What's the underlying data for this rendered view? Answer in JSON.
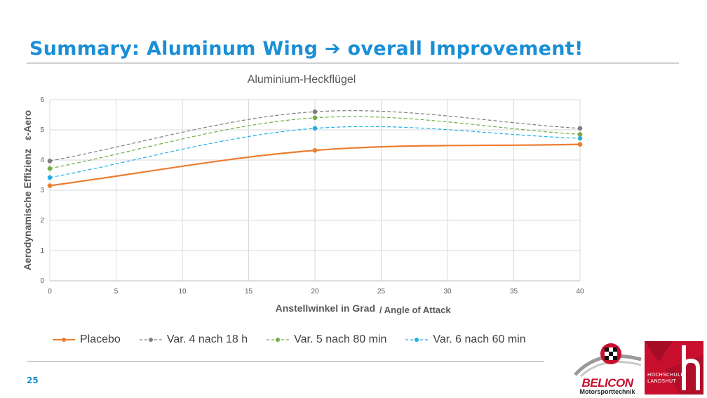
{
  "slide": {
    "title": "Summary: Aluminum Wing ➔ overall Improvement!",
    "page_number": "25"
  },
  "logos": {
    "belicon_name": "BELICON",
    "belicon_tagline": "Motorsporttechnik",
    "school_line1": "HOCHSCHULE",
    "school_line2": "LANDSHUT"
  },
  "colors": {
    "title": "#1a8fd6",
    "placebo": "#ed7d31",
    "var4": "#7f7f7f",
    "var5": "#70ad47",
    "var6": "#1fb0e6",
    "grid": "#d9d9d9",
    "brand_red": "#c8102e"
  },
  "chart_data": {
    "type": "line",
    "title": "Aluminium-Heckflügel",
    "xlabel": "Anstellwinkel in Grad",
    "xlabel_suffix": "/ Angle of Attack",
    "ylabel": "Aerodynamische Effizienz   ε-Aero",
    "xlim": [
      0,
      40
    ],
    "ylim": [
      0,
      6
    ],
    "xticks": [
      0,
      5,
      10,
      15,
      20,
      25,
      30,
      35,
      40
    ],
    "yticks": [
      0,
      1,
      2,
      3,
      4,
      5,
      6
    ],
    "grid": true,
    "legend_position": "bottom",
    "x": [
      0,
      20,
      40
    ],
    "series": [
      {
        "name": "Placebo",
        "values": [
          3.15,
          4.32,
          4.52
        ],
        "style": "solid"
      },
      {
        "name": "Var. 4 nach 18 h",
        "values": [
          3.97,
          5.6,
          5.05
        ],
        "style": "dashed"
      },
      {
        "name": "Var. 5 nach 80 min",
        "values": [
          3.72,
          5.4,
          4.85
        ],
        "style": "dashed"
      },
      {
        "name": "Var. 6 nach 60 min",
        "values": [
          3.42,
          5.05,
          4.72
        ],
        "style": "dashed"
      }
    ]
  }
}
